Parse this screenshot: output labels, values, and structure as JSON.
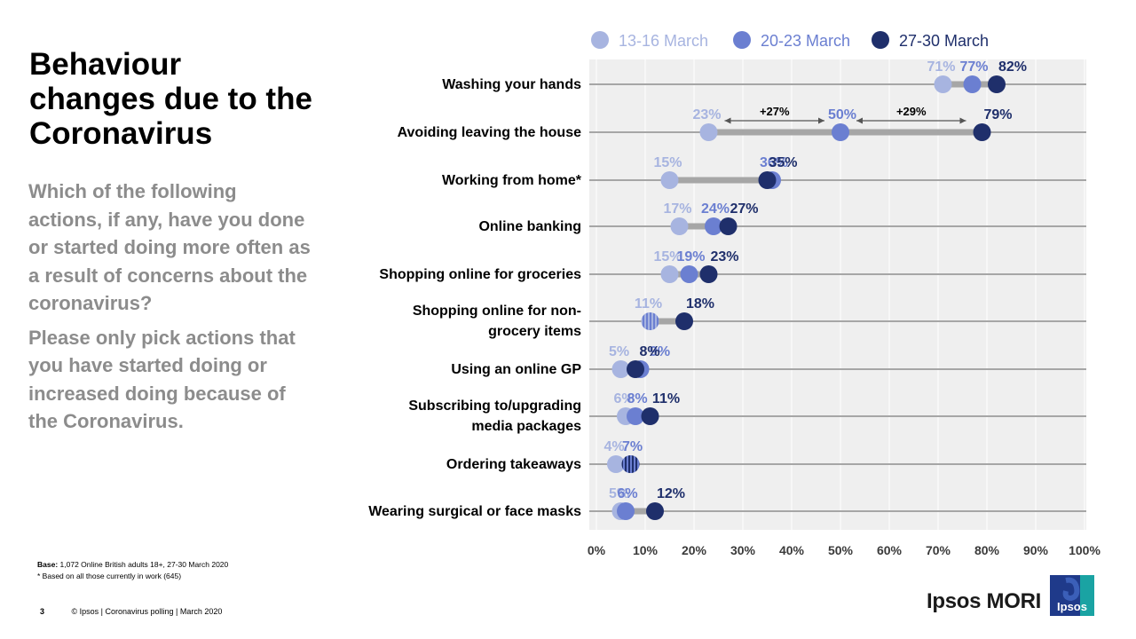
{
  "title": "Behaviour changes due to the Coronavirus",
  "question": [
    "Which of the following actions, if any, have you done or started doing more often as a result of concerns about the coronavirus?",
    "Please only pick actions that you have started doing or increased doing because of the Coronavirus."
  ],
  "base": {
    "label": "Base:",
    "text": "1,072 Online British adults 18+,  27-30 March 2020",
    "note": "* Based on all those currently in work (645)"
  },
  "footer": {
    "page": "3",
    "text": "© Ipsos | Coronavirus polling | March 2020"
  },
  "brand": {
    "name": "Ipsos MORI",
    "logo_text": "Ipsos"
  },
  "colors": {
    "wave1": "#a7b4e0",
    "wave2": "#6b7fd1",
    "wave3": "#1f2f6b",
    "connector": "#a6a6a6",
    "plot_bg": "#efefef"
  },
  "chart_data": {
    "type": "dot-plot",
    "xlim": [
      0,
      100
    ],
    "x_ticks": [
      "0%",
      "10%",
      "20%",
      "30%",
      "40%",
      "50%",
      "60%",
      "70%",
      "80%",
      "90%",
      "100%"
    ],
    "legend_position": "top",
    "categories": [
      [
        "Washing your hands"
      ],
      [
        "Avoiding leaving the house"
      ],
      [
        "Working from home*"
      ],
      [
        "Online banking"
      ],
      [
        "Shopping online for groceries"
      ],
      [
        "Shopping online for non-",
        "grocery items"
      ],
      [
        "Using an online GP"
      ],
      [
        "Subscribing to/upgrading",
        "media packages"
      ],
      [
        "Ordering takeaways"
      ],
      [
        "Wearing surgical or face masks"
      ]
    ],
    "series": [
      {
        "name": "13-16 March",
        "values": [
          71,
          23,
          15,
          17,
          15,
          11,
          5,
          6,
          4,
          5
        ]
      },
      {
        "name": "20-23 March",
        "values": [
          77,
          50,
          36,
          24,
          19,
          11,
          9,
          8,
          7,
          6
        ]
      },
      {
        "name": "27-30 March",
        "values": [
          82,
          79,
          35,
          27,
          23,
          18,
          8,
          11,
          7,
          12
        ]
      }
    ],
    "annotations": [
      {
        "category": "Avoiding leaving the house",
        "from": 23,
        "to": 50,
        "text": "+27%"
      },
      {
        "category": "Avoiding leaving the house",
        "from": 50,
        "to": 79,
        "text": "+29%"
      }
    ]
  }
}
